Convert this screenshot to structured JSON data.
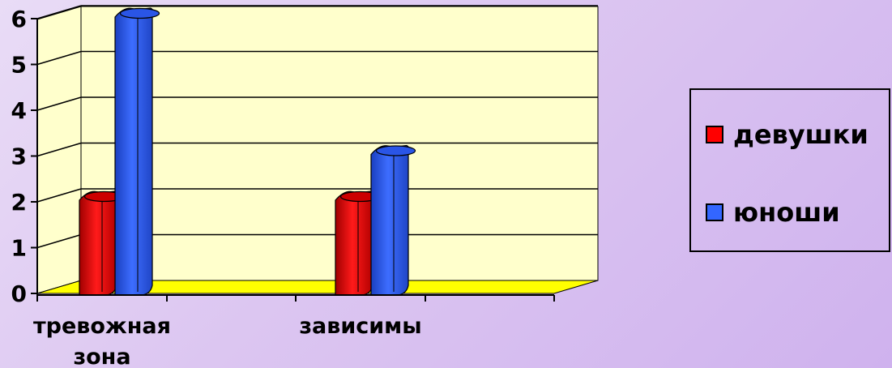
{
  "chart_data": {
    "type": "bar",
    "categories": [
      "тревожная зона",
      "зависимы"
    ],
    "category_lines": [
      [
        "тревожная",
        "зона"
      ],
      [
        "зависимы"
      ]
    ],
    "series": [
      {
        "name": "девушки",
        "values": [
          2,
          2
        ],
        "color": "#ff0000"
      },
      {
        "name": "юноши",
        "values": [
          6,
          3
        ],
        "color": "#3366ff"
      }
    ],
    "ylim": [
      0,
      6
    ],
    "yticks": [
      "0",
      "1",
      "2",
      "3",
      "4",
      "5",
      "6"
    ],
    "grid": true,
    "legend_position": "right",
    "wall_color": "#ffffcc",
    "floor_color": "#ffff00"
  }
}
